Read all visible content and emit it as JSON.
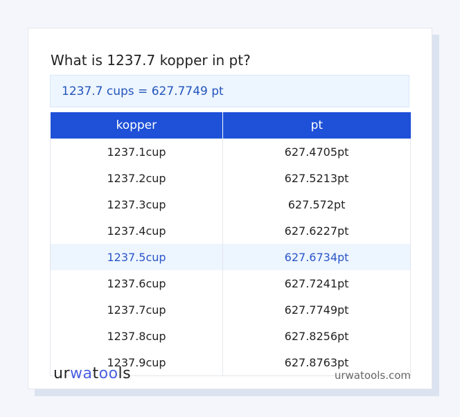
{
  "title": "What is 1237.7 kopper in pt?",
  "result": "1237.7 cups = 627.7749 pt",
  "table": {
    "headers": [
      "kopper",
      "pt"
    ],
    "highlight_row": 4,
    "rows": [
      [
        "1237.1cup",
        "627.4705pt"
      ],
      [
        "1237.2cup",
        "627.5213pt"
      ],
      [
        "1237.3cup",
        "627.572pt"
      ],
      [
        "1237.4cup",
        "627.6227pt"
      ],
      [
        "1237.5cup",
        "627.6734pt"
      ],
      [
        "1237.6cup",
        "627.7241pt"
      ],
      [
        "1237.7cup",
        "627.7749pt"
      ],
      [
        "1237.8cup",
        "627.8256pt"
      ],
      [
        "1237.9cup",
        "627.8763pt"
      ]
    ]
  },
  "footer": {
    "logo": "urwatools",
    "site": "urwatools.com"
  },
  "colors": {
    "accent": "#1e50d8",
    "highlight_bg": "#edf5ff"
  }
}
